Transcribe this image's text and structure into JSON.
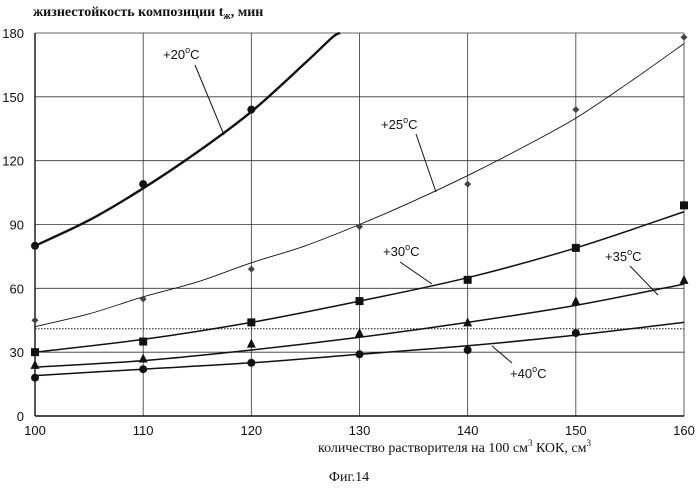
{
  "chart_data": {
    "type": "scatter",
    "title": "",
    "ylabel": "жизнестойкость композиции t",
    "ylabel_sub": "ж",
    "ylabel_unit": ", мин",
    "xlabel": "количество растворителя на 100 см",
    "xlabel_sup": "3",
    "xlabel_mid": " КОК, см",
    "xlabel_sup2": "3",
    "xlim": [
      100,
      160
    ],
    "ylim": [
      0,
      180
    ],
    "x_ticks": [
      100,
      110,
      120,
      130,
      140,
      150,
      160
    ],
    "y_ticks": [
      0,
      30,
      60,
      90,
      120,
      150,
      180
    ],
    "x_tick_labels": [
      "100",
      "110",
      "120",
      "130",
      "140",
      "150",
      "160"
    ],
    "y_tick_labels": [
      "0",
      "30",
      "60",
      "90",
      "120",
      "150",
      "180"
    ],
    "grid": true,
    "reference_line_y": 41,
    "series": [
      {
        "name": "+20",
        "name_sup": "o",
        "name_unit": "C",
        "marker": "circle",
        "curve_style": "thick",
        "x": [
          100,
          110,
          120
        ],
        "y": [
          80,
          109,
          144
        ],
        "fit_x": [
          100,
          105,
          110,
          115,
          120,
          125,
          127.5,
          128.2
        ],
        "fit_y": [
          80,
          92,
          107,
          124,
          143,
          166,
          178,
          180
        ]
      },
      {
        "name": "+25",
        "name_sup": "o",
        "name_unit": "C",
        "marker": "diamond",
        "curve_style": "thin",
        "x": [
          100,
          110,
          120,
          130,
          140,
          150,
          160
        ],
        "y": [
          45,
          55,
          69,
          89,
          109,
          144,
          178
        ],
        "fit_x": [
          100,
          105,
          110,
          115,
          120,
          125,
          130,
          135,
          140,
          145,
          150,
          155,
          160
        ],
        "fit_y": [
          42,
          48,
          56,
          63,
          72,
          80,
          90,
          101,
          113,
          126,
          140,
          157,
          175
        ]
      },
      {
        "name": "+30",
        "name_sup": "o",
        "name_unit": "C",
        "marker": "square",
        "curve_style": "normal",
        "x": [
          100,
          110,
          120,
          130,
          140,
          150,
          160
        ],
        "y": [
          30,
          35,
          44,
          54,
          64,
          79,
          99
        ],
        "fit_x": [
          100,
          110,
          120,
          130,
          140,
          150,
          160
        ],
        "fit_y": [
          30,
          36,
          44,
          54,
          65,
          79,
          96
        ]
      },
      {
        "name": "+35",
        "name_sup": "o",
        "name_unit": "C",
        "marker": "triangle",
        "curve_style": "normal",
        "x": [
          100,
          110,
          120,
          130,
          140,
          150,
          160
        ],
        "y": [
          24,
          27,
          34,
          39,
          44,
          54,
          64
        ],
        "fit_x": [
          100,
          110,
          120,
          130,
          140,
          150,
          160
        ],
        "fit_y": [
          23,
          26,
          31,
          37,
          44,
          52,
          62
        ]
      },
      {
        "name": "+40",
        "name_sup": "o",
        "name_unit": "C",
        "marker": "circle",
        "curve_style": "normal",
        "x": [
          100,
          110,
          120,
          130,
          140,
          150
        ],
        "y": [
          18,
          22,
          25,
          29,
          31,
          39
        ],
        "fit_x": [
          100,
          110,
          120,
          130,
          140,
          150,
          160
        ],
        "fit_y": [
          19,
          22,
          25,
          29,
          33,
          38,
          44
        ]
      }
    ]
  },
  "caption": "Фиг.14"
}
